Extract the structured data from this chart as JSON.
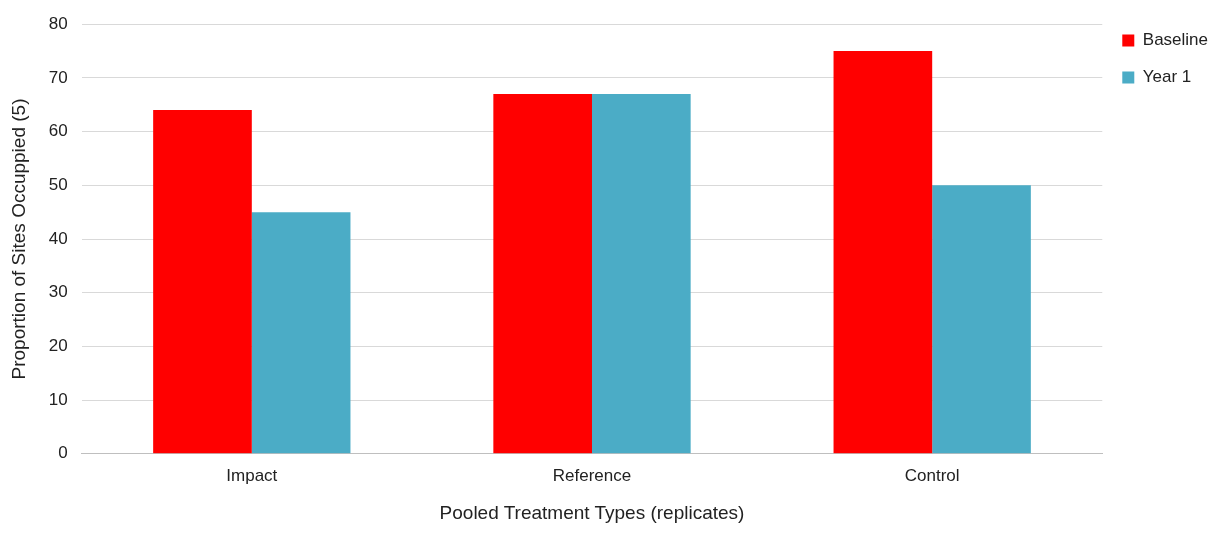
{
  "chart_data": {
    "type": "bar",
    "xlabel": "Pooled Treatment Types (replicates)",
    "ylabel": "Proportion of Sites Occuppied (5)",
    "categories": [
      "Impact",
      "Reference",
      "Control"
    ],
    "series": [
      {
        "name": "Baseline",
        "color": "#ff0000",
        "values": [
          64,
          67,
          75
        ]
      },
      {
        "name": "Year 1",
        "color": "#4bacc6",
        "values": [
          45,
          67,
          50
        ]
      }
    ],
    "ylim": [
      0,
      80
    ],
    "yticks": [
      0,
      10,
      20,
      30,
      40,
      50,
      60,
      70,
      80
    ],
    "grid": "y",
    "legend": "top right"
  }
}
